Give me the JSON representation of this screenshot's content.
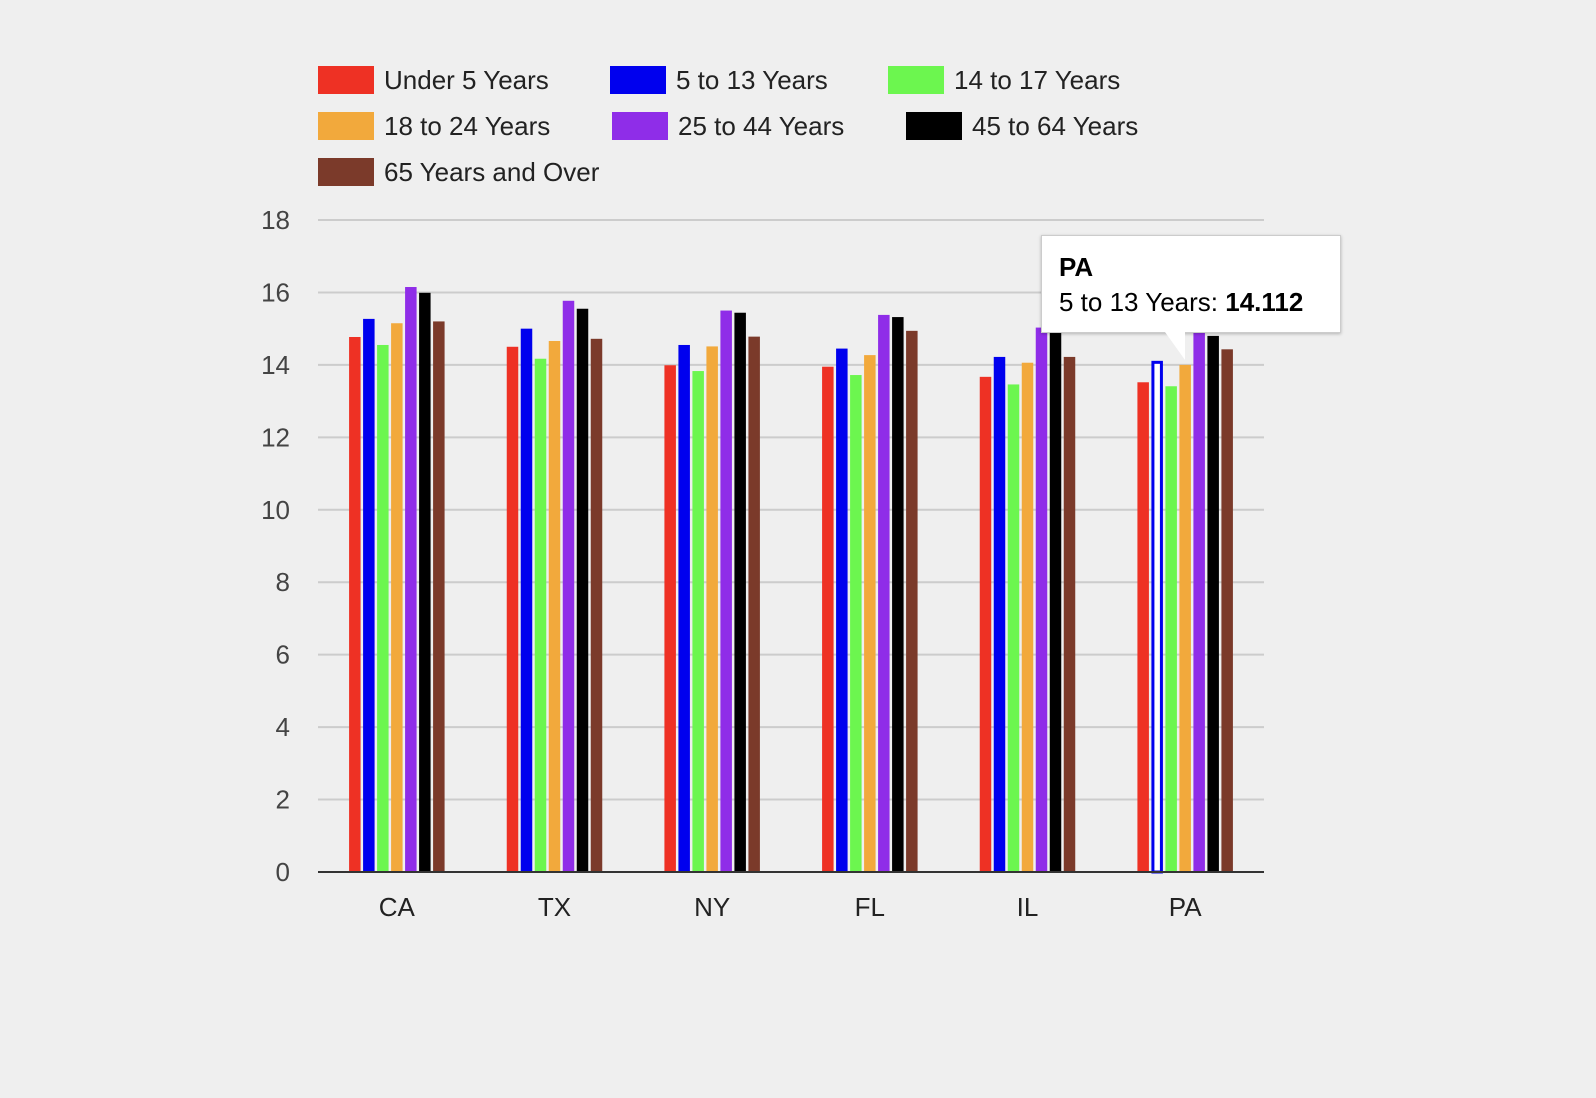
{
  "chart_data": {
    "type": "bar",
    "categories": [
      "CA",
      "TX",
      "NY",
      "FL",
      "IL",
      "PA"
    ],
    "series": [
      {
        "name": "Under 5 Years",
        "color": "#ee3124",
        "values": [
          14.77,
          14.5,
          13.99,
          13.95,
          13.67,
          13.52
        ]
      },
      {
        "name": "5 to 13 Years",
        "color": "#0000ee",
        "values": [
          15.27,
          15.0,
          14.55,
          14.45,
          14.22,
          14.112
        ]
      },
      {
        "name": "14 to 17 Years",
        "color": "#6cf64f",
        "values": [
          14.55,
          14.17,
          13.83,
          13.72,
          13.46,
          13.41
        ]
      },
      {
        "name": "18 to 24 Years",
        "color": "#f2a93c",
        "values": [
          15.15,
          14.66,
          14.51,
          14.27,
          14.06,
          14.0
        ]
      },
      {
        "name": "25 to 44 Years",
        "color": "#8f2de8",
        "values": [
          16.15,
          15.77,
          15.5,
          15.38,
          15.03,
          14.9
        ]
      },
      {
        "name": "45 to 64 Years",
        "color": "#000000",
        "values": [
          15.99,
          15.55,
          15.44,
          15.32,
          14.88,
          14.8
        ]
      },
      {
        "name": "65 Years and Over",
        "color": "#7b3a2a",
        "values": [
          15.2,
          14.72,
          14.78,
          14.94,
          14.22,
          14.43
        ]
      }
    ],
    "ylim": [
      0,
      18
    ],
    "yticks": [
      0,
      2,
      4,
      6,
      8,
      10,
      12,
      14,
      16,
      18
    ],
    "grid": true,
    "legend_position": "top",
    "highlighted": {
      "category": "PA",
      "series": "5 to 13 Years"
    },
    "tooltip": {
      "title": "PA",
      "label": "5 to 13 Years:",
      "value": "14.112"
    }
  }
}
